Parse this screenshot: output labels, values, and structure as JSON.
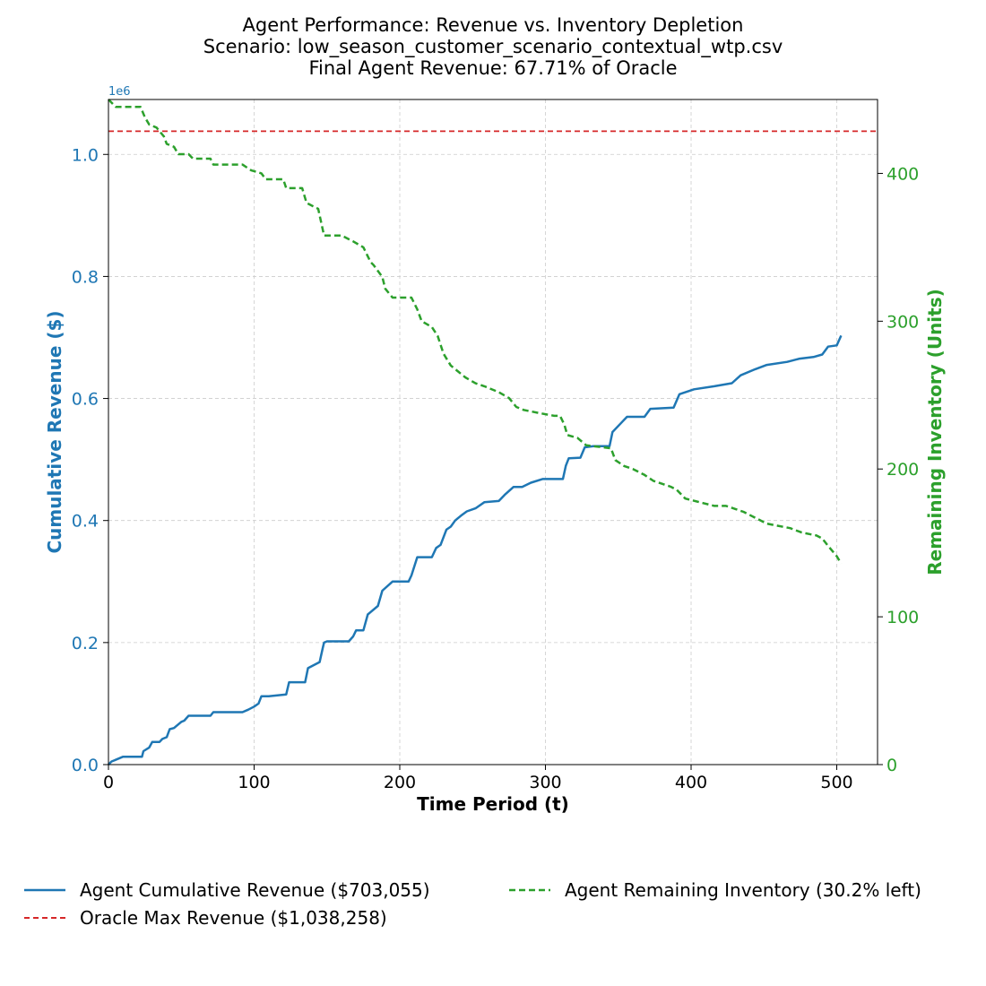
{
  "chart_data": {
    "type": "line",
    "title_lines": [
      "Agent Performance: Revenue vs. Inventory Depletion",
      "Scenario: low_season_customer_scenario_contextual_wtp.csv",
      "Final Agent Revenue: 67.71% of Oracle"
    ],
    "xlabel": "Time Period (t)",
    "ylabel_left": "Cumulative Revenue ($)",
    "ylabel_right": "Remaining Inventory (Units)",
    "left_axis_multiplier": "1e6",
    "xlim": [
      0,
      528
    ],
    "ylim_left": [
      0,
      1.09
    ],
    "ylim_right": [
      0,
      450
    ],
    "x_ticks": [
      "0",
      "100",
      "200",
      "300",
      "400",
      "500"
    ],
    "y_left_ticks": [
      "0.0",
      "0.2",
      "0.4",
      "0.6",
      "0.8",
      "1.0"
    ],
    "y_right_ticks": [
      "0",
      "100",
      "200",
      "300",
      "400"
    ],
    "grid": true,
    "legend_placement": "below",
    "colors": {
      "revenue": "#1f77b4",
      "inventory": "#2ca02c",
      "oracle": "#d62728"
    },
    "series": [
      {
        "name": "Agent Cumulative Revenue ($703,055)",
        "axis": "left",
        "style": "solid",
        "x": [
          0,
          2,
          10,
          23,
          24,
          28,
          30,
          35,
          37,
          40,
          42,
          45,
          50,
          52,
          55,
          58,
          70,
          72,
          92,
          96,
          100,
          103,
          105,
          110,
          122,
          124,
          135,
          137,
          145,
          147,
          148,
          150,
          165,
          168,
          170,
          175,
          178,
          180,
          185,
          188,
          195,
          206,
          208,
          212,
          222,
          225,
          228,
          232,
          235,
          238,
          242,
          246,
          252,
          258,
          268,
          272,
          278,
          284,
          290,
          298,
          312,
          314,
          316,
          324,
          327,
          333,
          344,
          346,
          352,
          356,
          368,
          372,
          388,
          392,
          402,
          416,
          428,
          434,
          444,
          452,
          466,
          474,
          484,
          490,
          494,
          500,
          503
        ],
        "y": [
          0.0,
          0.005,
          0.013,
          0.013,
          0.022,
          0.028,
          0.037,
          0.037,
          0.042,
          0.045,
          0.058,
          0.06,
          0.07,
          0.072,
          0.08,
          0.08,
          0.08,
          0.086,
          0.086,
          0.09,
          0.095,
          0.1,
          0.112,
          0.112,
          0.115,
          0.135,
          0.135,
          0.158,
          0.168,
          0.19,
          0.2,
          0.202,
          0.202,
          0.21,
          0.22,
          0.22,
          0.246,
          0.25,
          0.26,
          0.285,
          0.3,
          0.3,
          0.31,
          0.34,
          0.34,
          0.355,
          0.36,
          0.385,
          0.39,
          0.4,
          0.408,
          0.415,
          0.42,
          0.43,
          0.432,
          0.442,
          0.455,
          0.455,
          0.462,
          0.468,
          0.468,
          0.49,
          0.502,
          0.503,
          0.52,
          0.522,
          0.522,
          0.545,
          0.56,
          0.57,
          0.57,
          0.583,
          0.585,
          0.607,
          0.615,
          0.62,
          0.625,
          0.638,
          0.648,
          0.655,
          0.66,
          0.665,
          0.668,
          0.672,
          0.685,
          0.687,
          0.703
        ]
      },
      {
        "name": "Agent Remaining Inventory (30.2% left)",
        "axis": "right",
        "style": "dashed",
        "x": [
          0,
          5,
          10,
          22,
          25,
          28,
          33,
          38,
          40,
          45,
          48,
          55,
          58,
          70,
          72,
          92,
          98,
          105,
          108,
          120,
          122,
          133,
          136,
          144,
          148,
          160,
          168,
          175,
          180,
          182,
          188,
          190,
          195,
          208,
          212,
          215,
          222,
          226,
          230,
          235,
          240,
          245,
          252,
          258,
          268,
          275,
          280,
          285,
          295,
          306,
          310,
          313,
          315,
          322,
          328,
          345,
          348,
          354,
          360,
          368,
          374,
          386,
          390,
          396,
          404,
          416,
          424,
          430,
          436,
          444,
          452,
          468,
          476,
          486,
          490,
          494,
          500,
          503
        ],
        "y": [
          450,
          445,
          445,
          445,
          438,
          433,
          431,
          425,
          420,
          418,
          413,
          413,
          410,
          410,
          406,
          406,
          402,
          400,
          396,
          396,
          390,
          390,
          380,
          376,
          358,
          358,
          354,
          350,
          340,
          338,
          330,
          322,
          316,
          316,
          308,
          300,
          296,
          290,
          278,
          270,
          266,
          262,
          258,
          256,
          252,
          248,
          242,
          240,
          238,
          236,
          236,
          230,
          223,
          221,
          216,
          214,
          206,
          202,
          200,
          196,
          192,
          188,
          186,
          180,
          178,
          175,
          175,
          173,
          171,
          167,
          163,
          160,
          157,
          155,
          153,
          148,
          141,
          136
        ]
      },
      {
        "name": "Oracle Max Revenue ($1,038,258)",
        "axis": "left",
        "style": "dashed",
        "x": [
          0,
          528
        ],
        "y": [
          1.038,
          1.038
        ]
      }
    ]
  }
}
